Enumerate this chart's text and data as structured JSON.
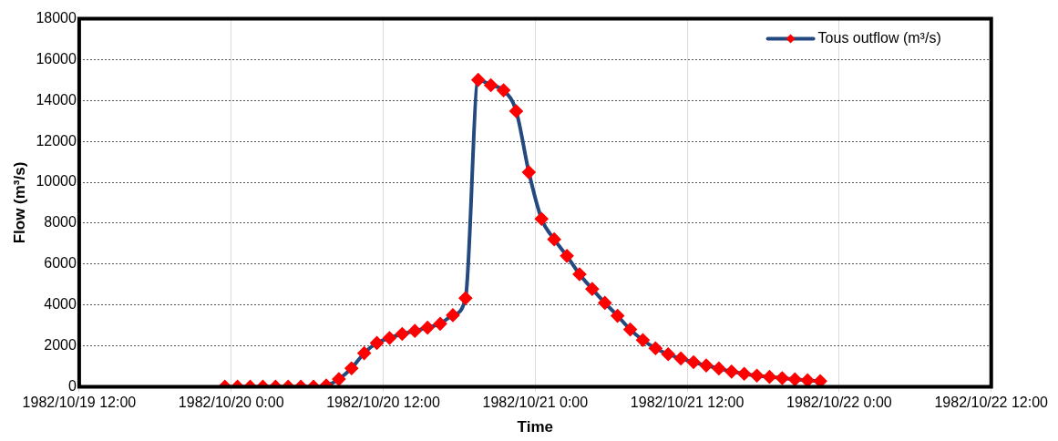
{
  "chart_data": {
    "type": "line",
    "xlabel": "Time",
    "ylabel": "Flow (m³/s)",
    "xlim": [
      "1982-10-19T12:00",
      "1982-10-22T12:00"
    ],
    "xticks": [
      {
        "value": "1982-10-19T12:00",
        "label": "1982/10/19 12:00"
      },
      {
        "value": "1982-10-20T00:00",
        "label": "1982/10/20 0:00"
      },
      {
        "value": "1982-10-20T12:00",
        "label": "1982/10/20 12:00"
      },
      {
        "value": "1982-10-21T00:00",
        "label": "1982/10/21 0:00"
      },
      {
        "value": "1982-10-21T12:00",
        "label": "1982/10/21 12:00"
      },
      {
        "value": "1982-10-22T00:00",
        "label": "1982/10/22 0:00"
      },
      {
        "value": "1982-10-22T12:00",
        "label": "1982/10/22 12:00"
      }
    ],
    "ylim": [
      0,
      18000
    ],
    "yticks": [
      0,
      2000,
      4000,
      6000,
      8000,
      10000,
      12000,
      14000,
      16000,
      18000
    ],
    "grid": true,
    "legend": "top right",
    "marker": "diamond",
    "line_style": "solid",
    "x": [
      "1982-10-19T23:30",
      "1982-10-20T00:30",
      "1982-10-20T01:30",
      "1982-10-20T02:30",
      "1982-10-20T03:30",
      "1982-10-20T04:30",
      "1982-10-20T05:30",
      "1982-10-20T06:30",
      "1982-10-20T07:30",
      "1982-10-20T08:30",
      "1982-10-20T09:30",
      "1982-10-20T10:30",
      "1982-10-20T11:30",
      "1982-10-20T12:30",
      "1982-10-20T13:30",
      "1982-10-20T14:30",
      "1982-10-20T15:30",
      "1982-10-20T16:30",
      "1982-10-20T17:30",
      "1982-10-20T18:30",
      "1982-10-20T19:30",
      "1982-10-20T20:30",
      "1982-10-20T21:30",
      "1982-10-20T22:30",
      "1982-10-20T23:30",
      "1982-10-21T00:30",
      "1982-10-21T01:30",
      "1982-10-21T02:30",
      "1982-10-21T03:30",
      "1982-10-21T04:30",
      "1982-10-21T05:30",
      "1982-10-21T06:30",
      "1982-10-21T07:30",
      "1982-10-21T08:30",
      "1982-10-21T09:30",
      "1982-10-21T10:30",
      "1982-10-21T11:30",
      "1982-10-21T12:30",
      "1982-10-21T13:30",
      "1982-10-21T14:30",
      "1982-10-21T15:30",
      "1982-10-21T16:30",
      "1982-10-21T17:30",
      "1982-10-21T18:30",
      "1982-10-21T19:30",
      "1982-10-21T20:30",
      "1982-10-21T21:30",
      "1982-10-21T22:30"
    ],
    "series": [
      {
        "name": "Tous outflow (m³/s)",
        "color": "#24497f",
        "values": [
          0,
          0,
          0,
          0,
          0,
          0,
          0,
          0,
          60,
          370,
          900,
          1640,
          2140,
          2380,
          2580,
          2730,
          2890,
          3080,
          3500,
          4330,
          15010,
          14750,
          14500,
          13480,
          10490,
          8210,
          7210,
          6400,
          5500,
          4780,
          4100,
          3470,
          2800,
          2280,
          1880,
          1590,
          1380,
          1200,
          1040,
          890,
          740,
          630,
          540,
          480,
          420,
          360,
          310,
          270
        ]
      }
    ]
  }
}
